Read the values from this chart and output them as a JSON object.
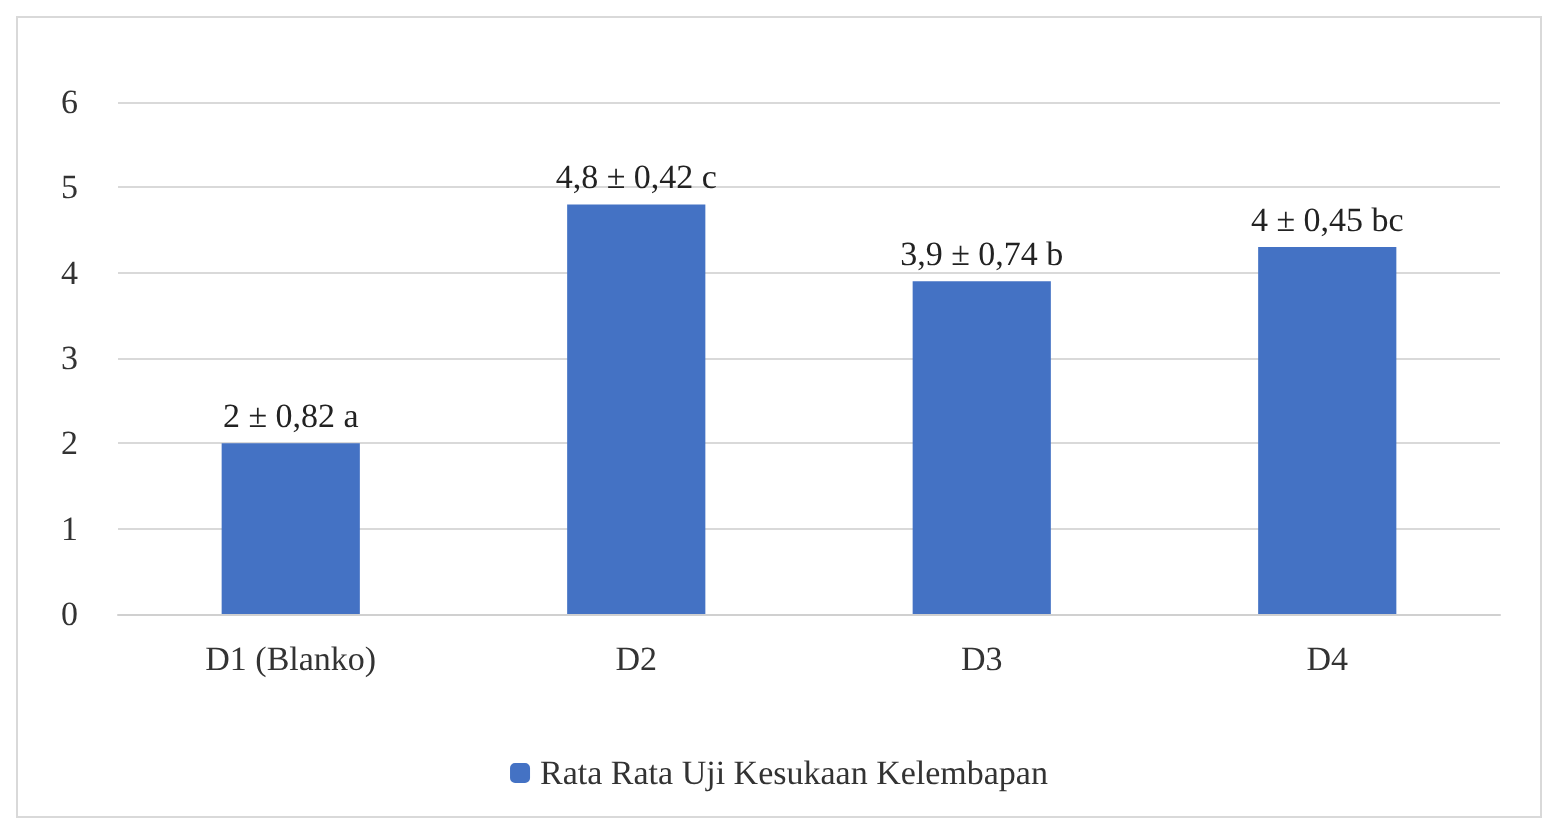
{
  "chart_data": {
    "type": "bar",
    "categories": [
      "D1 (Blanko)",
      "D2",
      "D3",
      "D4"
    ],
    "series": [
      {
        "name": "Rata Rata Uji Kesukaan Kelembapan",
        "color": "#4472c4",
        "values": [
          2,
          4.8,
          3.9,
          4.3
        ],
        "value_labels": [
          "2 ± 0,82 a",
          "4,8 ± 0,42 c",
          "3,9 ± 0,74 b",
          "4 ± 0,45 bc"
        ]
      }
    ],
    "ylim": [
      0,
      6
    ],
    "yticks": [
      0,
      1,
      2,
      3,
      4,
      5,
      6
    ],
    "grid": "y",
    "legend": "bottom"
  }
}
